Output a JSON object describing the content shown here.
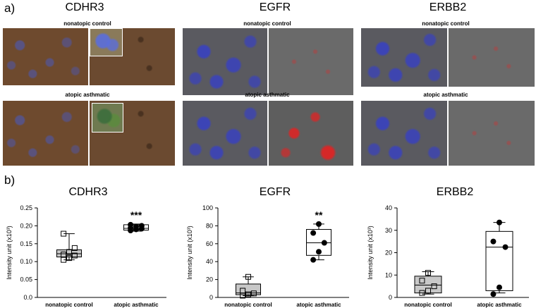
{
  "panel_a": {
    "letter": "a)",
    "genes": [
      "CDHR3",
      "EGFR",
      "ERBB2"
    ],
    "conditions": {
      "top": "nonatopic control",
      "bottom": "atopic asthmatic"
    }
  },
  "panel_b": {
    "letter": "b)"
  },
  "chart_data": [
    {
      "type": "box",
      "title": "CDHR3",
      "ylabel": "Intensity unit (x10³)",
      "ylim": [
        0,
        0.25
      ],
      "yticks": [
        "0.0",
        "0.05",
        "0.10",
        "0.15",
        "0.20",
        "0.25"
      ],
      "categories": [
        "nonatopic control",
        "atopic asthmatic"
      ],
      "boxes": [
        {
          "name": "nonatopic control",
          "min": 0.105,
          "q1": 0.113,
          "median": 0.122,
          "q3": 0.133,
          "max": 0.178,
          "fill": "#c8c8c8",
          "marker": "square",
          "points": [
            0.105,
            0.11,
            0.117,
            0.12,
            0.127,
            0.138,
            0.178
          ]
        },
        {
          "name": "atopic asthmatic",
          "min": 0.185,
          "q1": 0.188,
          "median": 0.193,
          "q3": 0.203,
          "max": 0.205,
          "fill": "#ffffff",
          "marker": "circle",
          "points": [
            0.187,
            0.19,
            0.192,
            0.194,
            0.198,
            0.2,
            0.203
          ]
        }
      ],
      "significance": [
        "",
        "***"
      ]
    },
    {
      "type": "box",
      "title": "EGFR",
      "ylabel": "Intensity unit (x10³)",
      "ylim": [
        0,
        100
      ],
      "yticks": [
        "0",
        "20",
        "40",
        "60",
        "80",
        "100"
      ],
      "categories": [
        "nonatopic control",
        "atopic asthmatic"
      ],
      "boxes": [
        {
          "name": "nonatopic control",
          "min": 2,
          "q1": 3,
          "median": 5,
          "q3": 15,
          "max": 23,
          "fill": "#c8c8c8",
          "marker": "square",
          "points": [
            2,
            3.5,
            4.5,
            7.5,
            23
          ]
        },
        {
          "name": "atopic asthmatic",
          "min": 42,
          "q1": 47,
          "median": 61,
          "q3": 76,
          "max": 82,
          "fill": "#ffffff",
          "marker": "circle",
          "points": [
            42,
            51,
            61,
            72,
            82
          ]
        }
      ],
      "significance": [
        "",
        "**"
      ]
    },
    {
      "type": "box",
      "title": "ERBB2",
      "ylabel": "Intensity unit (x10³)",
      "ylim": [
        0,
        40
      ],
      "yticks": [
        "0",
        "10",
        "20",
        "30",
        "40"
      ],
      "categories": [
        "nonatopic control",
        "atopic asthmatic"
      ],
      "boxes": [
        {
          "name": "nonatopic control",
          "min": 1.5,
          "q1": 2,
          "median": 5.5,
          "q3": 9.5,
          "max": 11.5,
          "fill": "#c8c8c8",
          "marker": "square",
          "points": [
            2,
            3,
            5,
            7.5,
            11
          ]
        },
        {
          "name": "atopic asthmatic",
          "min": 2,
          "q1": 3,
          "median": 22.5,
          "q3": 29.5,
          "max": 33.5,
          "fill": "#ffffff",
          "marker": "circle",
          "points": [
            1.5,
            4.5,
            22.5,
            25,
            33.5
          ]
        }
      ],
      "significance": [
        "",
        ""
      ]
    }
  ]
}
